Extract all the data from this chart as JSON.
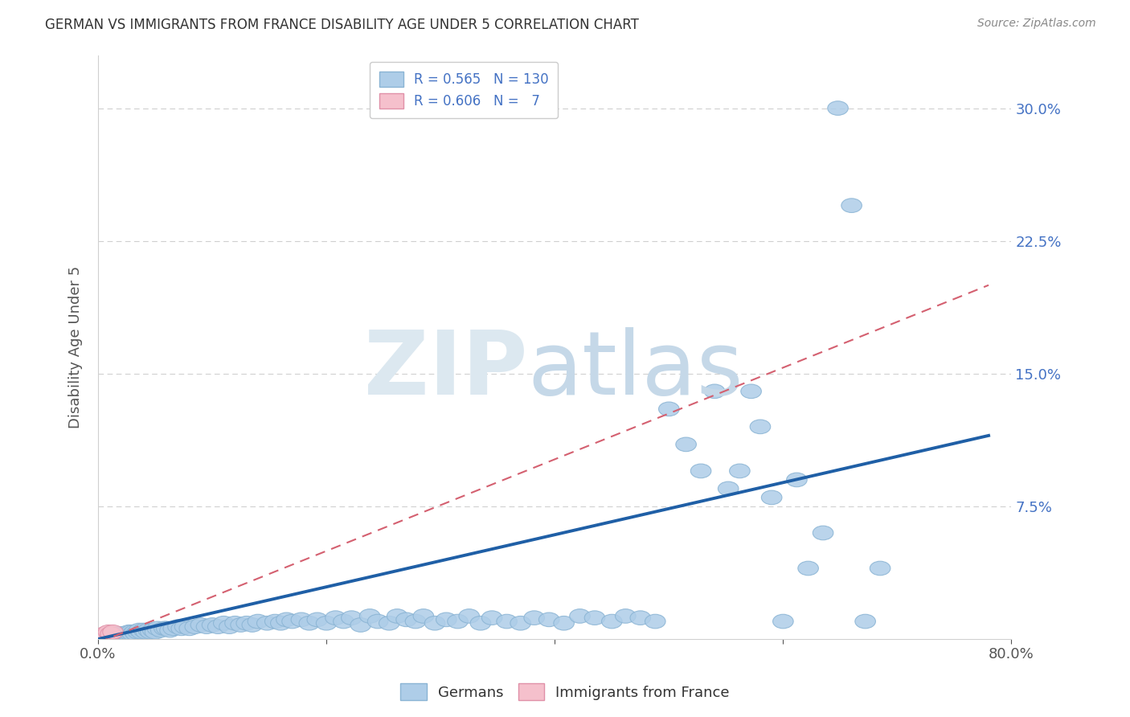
{
  "title": "GERMAN VS IMMIGRANTS FROM FRANCE DISABILITY AGE UNDER 5 CORRELATION CHART",
  "source": "Source: ZipAtlas.com",
  "ylabel": "Disability Age Under 5",
  "xlim": [
    0,
    0.8
  ],
  "ylim": [
    0,
    0.33
  ],
  "xtick_positions": [
    0.0,
    0.2,
    0.4,
    0.6,
    0.8
  ],
  "xtick_labels": [
    "0.0%",
    "",
    "",
    "",
    "80.0%"
  ],
  "ytick_labels": [
    "7.5%",
    "15.0%",
    "22.5%",
    "30.0%"
  ],
  "yticks": [
    0.075,
    0.15,
    0.225,
    0.3
  ],
  "bottom_legend": [
    "Germans",
    "Immigrants from France"
  ],
  "german_color": "#aecde8",
  "german_edge_color": "#8ab4d4",
  "immigrant_color": "#f5c0cc",
  "immigrant_edge_color": "#e090a8",
  "german_line_color": "#1f5fa6",
  "immigrant_line_color": "#d46070",
  "background_color": "#ffffff",
  "grid_color": "#d0d0d0",
  "title_color": "#333333",
  "source_color": "#888888",
  "ytick_color": "#4472c4",
  "xtick_color": "#555555",
  "ylabel_color": "#555555",
  "legend_edge_color": "#cccccc",
  "watermark_zip_color": "#dce8f0",
  "watermark_atlas_color": "#c5d8e8",
  "german_x": [
    0.002,
    0.003,
    0.004,
    0.004,
    0.005,
    0.005,
    0.006,
    0.006,
    0.007,
    0.007,
    0.008,
    0.008,
    0.009,
    0.009,
    0.01,
    0.01,
    0.011,
    0.011,
    0.012,
    0.012,
    0.013,
    0.013,
    0.014,
    0.015,
    0.015,
    0.016,
    0.016,
    0.017,
    0.018,
    0.018,
    0.019,
    0.02,
    0.02,
    0.021,
    0.022,
    0.023,
    0.024,
    0.025,
    0.026,
    0.027,
    0.028,
    0.029,
    0.03,
    0.032,
    0.033,
    0.035,
    0.036,
    0.038,
    0.04,
    0.042,
    0.044,
    0.046,
    0.048,
    0.05,
    0.052,
    0.055,
    0.058,
    0.06,
    0.063,
    0.066,
    0.07,
    0.073,
    0.076,
    0.08,
    0.085,
    0.09,
    0.095,
    0.1,
    0.105,
    0.11,
    0.115,
    0.12,
    0.125,
    0.13,
    0.135,
    0.14,
    0.148,
    0.155,
    0.16,
    0.165,
    0.17,
    0.178,
    0.185,
    0.192,
    0.2,
    0.208,
    0.215,
    0.222,
    0.23,
    0.238,
    0.245,
    0.255,
    0.262,
    0.27,
    0.278,
    0.285,
    0.295,
    0.305,
    0.315,
    0.325,
    0.335,
    0.345,
    0.358,
    0.37,
    0.382,
    0.395,
    0.408,
    0.422,
    0.435,
    0.45,
    0.462,
    0.475,
    0.488,
    0.5,
    0.515,
    0.528,
    0.54,
    0.552,
    0.562,
    0.572,
    0.58,
    0.59,
    0.6,
    0.612,
    0.622,
    0.635,
    0.648,
    0.66,
    0.672,
    0.685
  ],
  "german_y": [
    0.001,
    0.001,
    0.001,
    0.002,
    0.001,
    0.002,
    0.001,
    0.002,
    0.001,
    0.002,
    0.001,
    0.002,
    0.001,
    0.002,
    0.001,
    0.003,
    0.001,
    0.002,
    0.001,
    0.003,
    0.002,
    0.001,
    0.002,
    0.001,
    0.003,
    0.001,
    0.002,
    0.003,
    0.001,
    0.002,
    0.003,
    0.001,
    0.002,
    0.003,
    0.002,
    0.003,
    0.002,
    0.003,
    0.003,
    0.004,
    0.003,
    0.004,
    0.003,
    0.004,
    0.003,
    0.004,
    0.005,
    0.004,
    0.005,
    0.004,
    0.005,
    0.004,
    0.005,
    0.004,
    0.006,
    0.005,
    0.006,
    0.006,
    0.005,
    0.006,
    0.007,
    0.006,
    0.007,
    0.006,
    0.007,
    0.008,
    0.007,
    0.008,
    0.007,
    0.009,
    0.007,
    0.009,
    0.008,
    0.009,
    0.008,
    0.01,
    0.009,
    0.01,
    0.009,
    0.011,
    0.01,
    0.011,
    0.009,
    0.011,
    0.009,
    0.012,
    0.01,
    0.012,
    0.008,
    0.013,
    0.01,
    0.009,
    0.013,
    0.011,
    0.01,
    0.013,
    0.009,
    0.011,
    0.01,
    0.013,
    0.009,
    0.012,
    0.01,
    0.009,
    0.012,
    0.011,
    0.009,
    0.013,
    0.012,
    0.01,
    0.013,
    0.012,
    0.01,
    0.13,
    0.11,
    0.095,
    0.14,
    0.085,
    0.095,
    0.14,
    0.12,
    0.08,
    0.01,
    0.09,
    0.04,
    0.06,
    0.3,
    0.245,
    0.01,
    0.04
  ],
  "immigrant_x": [
    0.003,
    0.005,
    0.006,
    0.007,
    0.009,
    0.011,
    0.013
  ],
  "immigrant_y": [
    0.001,
    0.002,
    0.003,
    0.002,
    0.004,
    0.003,
    0.004
  ],
  "german_line_x": [
    0.0,
    0.78
  ],
  "german_line_y": [
    0.0,
    0.115
  ],
  "immigrant_line_x": [
    0.0,
    0.78
  ],
  "immigrant_line_y": [
    -0.002,
    0.2
  ]
}
